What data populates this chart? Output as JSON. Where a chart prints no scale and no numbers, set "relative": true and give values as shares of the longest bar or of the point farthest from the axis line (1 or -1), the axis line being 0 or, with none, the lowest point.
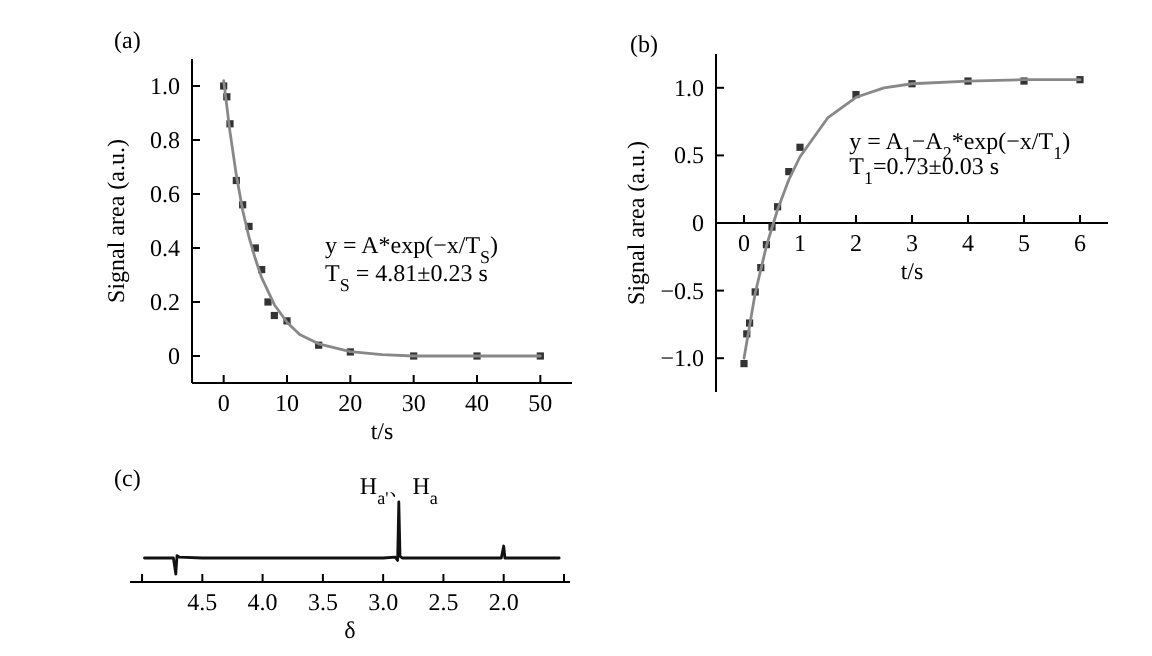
{
  "chart_data": [
    {
      "type": "scatter",
      "title": "(a)",
      "xlabel": "t/s",
      "ylabel": "Signal area (a.u.)",
      "xlim": [
        -5,
        55
      ],
      "ylim": [
        -0.1,
        1.1
      ],
      "xticks": [
        0,
        10,
        20,
        30,
        40,
        50
      ],
      "yticks": [
        0,
        {
          "value": 0.2,
          "label": "0.2"
        },
        {
          "value": 0.4,
          "label": "0.4"
        },
        {
          "value": 0.6,
          "label": "0.6"
        },
        {
          "value": 0.8,
          "label": "0.8"
        },
        {
          "value": 1,
          "label": "1.0"
        }
      ],
      "series": [
        {
          "marker": "square",
          "color": "#333333",
          "x": [
            0,
            0.5,
            1,
            2,
            3,
            4,
            5,
            6,
            7,
            8,
            10,
            15,
            20,
            30,
            40,
            50
          ],
          "values": [
            1.0,
            0.96,
            0.86,
            0.65,
            0.56,
            0.48,
            0.4,
            0.32,
            0.2,
            0.15,
            0.13,
            0.04,
            0.015,
            0,
            0,
            0
          ]
        },
        {
          "type": "line",
          "color": "#888888",
          "x": [
            0,
            1,
            2,
            3,
            4,
            5,
            6,
            8,
            10,
            12,
            15,
            20,
            25,
            30,
            40,
            50
          ],
          "values": [
            1.02,
            0.83,
            0.67,
            0.54,
            0.44,
            0.36,
            0.29,
            0.19,
            0.125,
            0.08,
            0.045,
            0.016,
            0.005,
            0,
            0,
            0
          ]
        }
      ],
      "annotations": [
        "y = A*exp(−x/T$_{S}$)",
        "T$_{S}$ = 4.81±0.23 s"
      ]
    },
    {
      "type": "scatter",
      "title": "(b)",
      "xlabel": "t/s",
      "ylabel": "Signal area (a.u.)",
      "xlim": [
        -0.5,
        6.5
      ],
      "ylim": [
        -1.25,
        1.25
      ],
      "xticks": [
        0,
        1,
        2,
        3,
        4,
        5,
        6
      ],
      "yticks": [
        {
          "value": -1,
          "label": "−1.0"
        },
        {
          "value": -0.5,
          "label": "−0.5"
        },
        0,
        {
          "value": 0.5,
          "label": "0.5"
        },
        {
          "value": 1,
          "label": "1.0"
        }
      ],
      "series": [
        {
          "marker": "square",
          "color": "#333333",
          "x": [
            0,
            0.05,
            0.1,
            0.2,
            0.3,
            0.4,
            0.5,
            0.6,
            0.8,
            1,
            2,
            3,
            4,
            5,
            6
          ],
          "values": [
            -1.04,
            -0.82,
            -0.74,
            -0.51,
            -0.33,
            -0.16,
            -0.03,
            0.12,
            0.38,
            0.56,
            0.95,
            1.03,
            1.05,
            1.05,
            1.06
          ]
        },
        {
          "type": "line",
          "color": "#888888",
          "x": [
            0,
            0.2,
            0.4,
            0.6,
            0.8,
            1,
            1.5,
            2,
            2.5,
            3,
            4,
            5,
            6
          ],
          "values": [
            -1.0,
            -0.52,
            -0.17,
            0.1,
            0.32,
            0.49,
            0.78,
            0.93,
            1.0,
            1.03,
            1.05,
            1.06,
            1.06
          ]
        }
      ],
      "annotations": [
        "y = A$_{1}$−A$_{2}$*exp(−x/T$_{1}$)",
        "T$_{1}$=0.73±0.03 s"
      ]
    },
    {
      "type": "line",
      "title": "(c)",
      "xlabel": "δ",
      "relative": true,
      "tick_labels": "x",
      "xlim": [
        5.1,
        1.45
      ],
      "xticks": [
        {
          "value": 5.0,
          "label": null
        },
        {
          "value": 4.5,
          "label": "4.5"
        },
        {
          "value": 4.0,
          "label": "4.0"
        },
        {
          "value": 3.5,
          "label": "3.5"
        },
        {
          "value": 3.0,
          "label": "3.0"
        },
        {
          "value": 2.5,
          "label": "2.5"
        },
        {
          "value": 2.0,
          "label": "2.0"
        },
        {
          "value": 1.5,
          "label": null
        }
      ],
      "series": [
        {
          "color": "#111111",
          "x": [
            4.98,
            4.8,
            4.74,
            4.72,
            4.71,
            4.69,
            4.5,
            3.0,
            2.9,
            2.88,
            2.87,
            2.86,
            2.84,
            2.02,
            2.0,
            1.99,
            1.54
          ],
          "values": [
            0.3,
            0.3,
            0.3,
            0.1,
            0.33,
            0.31,
            0.3,
            0.3,
            0.31,
            0.27,
            1.0,
            0.32,
            0.3,
            0.3,
            0.45,
            0.3,
            0.3
          ]
        }
      ],
      "annotations": [
        {
          "text": "H$_{a'}$、H$_{a}$",
          "x": 2.87,
          "y": 1.0
        }
      ]
    }
  ]
}
